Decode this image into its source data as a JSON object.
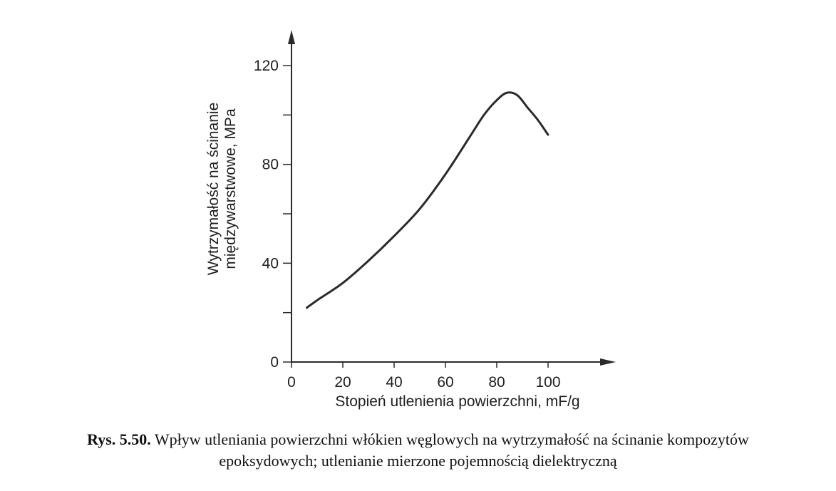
{
  "chart_data": {
    "type": "line",
    "xlabel": "Stopień utlenienia powierzchni, mF/g",
    "ylabel_line1": "Wytrzymałość na ścinanie",
    "ylabel_line2": "międzywarstwowe, MPa",
    "xlim": [
      0,
      125
    ],
    "ylim": [
      0,
      135
    ],
    "x_ticks": [
      0,
      20,
      40,
      60,
      80,
      100
    ],
    "y_ticks_labeled": [
      0,
      40,
      80,
      120
    ],
    "y_ticks_minor": [
      20,
      60,
      100
    ],
    "grid": false,
    "series": [
      {
        "x": [
          6,
          10,
          20,
          30,
          40,
          50,
          60,
          70,
          75,
          80,
          84,
          88,
          92,
          96,
          100
        ],
        "y": [
          22,
          25,
          32,
          41,
          51,
          62,
          76,
          92,
          100,
          106,
          109,
          108,
          103,
          98,
          92
        ],
        "color": "#2a2a2a"
      }
    ]
  },
  "caption": {
    "prefix": "Rys. 5.50.",
    "line1": "Wpływ utleniania powierzchni włókien węglowych na wytrzymałość  na ścinanie  kompozytów",
    "line2": "epoksydowych; utlenianie mierzone pojemnością  dielektryczną"
  }
}
